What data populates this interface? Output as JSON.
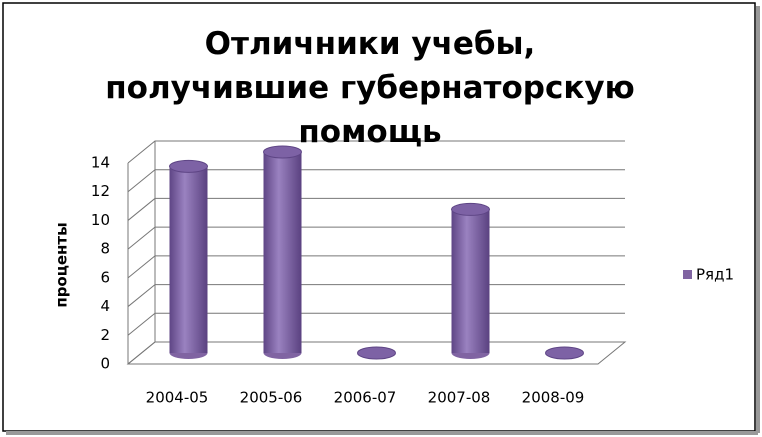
{
  "chart_data": {
    "type": "bar3d",
    "title": "Отличники учебы, получившие губернаторскую помощь",
    "y_label": "проценты",
    "categories": [
      "2004-05",
      "2005-06",
      "2006-07",
      "2007-08",
      "2008-09"
    ],
    "series": [
      {
        "name": "Ряд1",
        "color": "#8064a2",
        "values": [
          13,
          14,
          0,
          10,
          0
        ]
      }
    ],
    "ylim": [
      0,
      14
    ],
    "yticks": [
      0,
      2,
      4,
      6,
      8,
      10,
      12,
      14
    ],
    "grid": true,
    "legend": "right"
  }
}
